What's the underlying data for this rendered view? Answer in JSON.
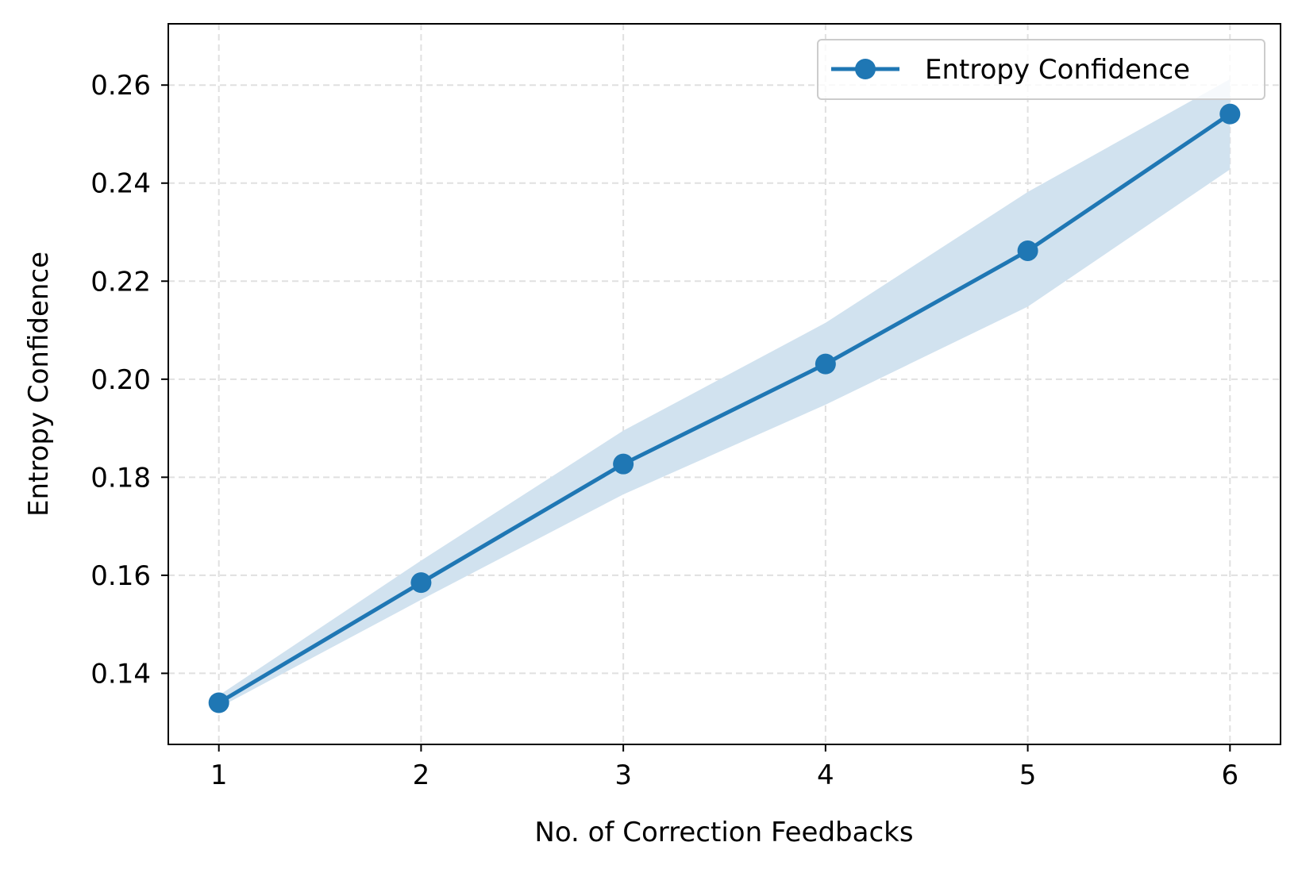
{
  "chart_data": {
    "type": "line",
    "title": "",
    "xlabel": "No. of Correction Feedbacks",
    "ylabel": "Entropy Confidence",
    "x": [
      1,
      2,
      3,
      4,
      5,
      6
    ],
    "xlim": [
      0.75,
      6.25
    ],
    "ylim": [
      0.1255,
      0.2725
    ],
    "xticks": [
      1,
      2,
      3,
      4,
      5,
      6
    ],
    "yticks": [
      0.14,
      0.16,
      0.18,
      0.2,
      0.22,
      0.24,
      0.26
    ],
    "ytick_labels": [
      "0.14",
      "0.16",
      "0.18",
      "0.20",
      "0.22",
      "0.24",
      "0.26"
    ],
    "grid": true,
    "legend_position": "top-right",
    "series": [
      {
        "name": "Entropy Confidence",
        "values": [
          0.134,
          0.1585,
          0.1827,
          0.2031,
          0.2262,
          0.2541
        ],
        "band_lower": [
          0.133,
          0.155,
          0.1765,
          0.1948,
          0.2148,
          0.2428
        ],
        "band_upper": [
          0.1355,
          0.163,
          0.1895,
          0.2115,
          0.2382,
          0.2612
        ],
        "color": "#1f77b4",
        "band_color": "#d1e2ef"
      }
    ]
  }
}
